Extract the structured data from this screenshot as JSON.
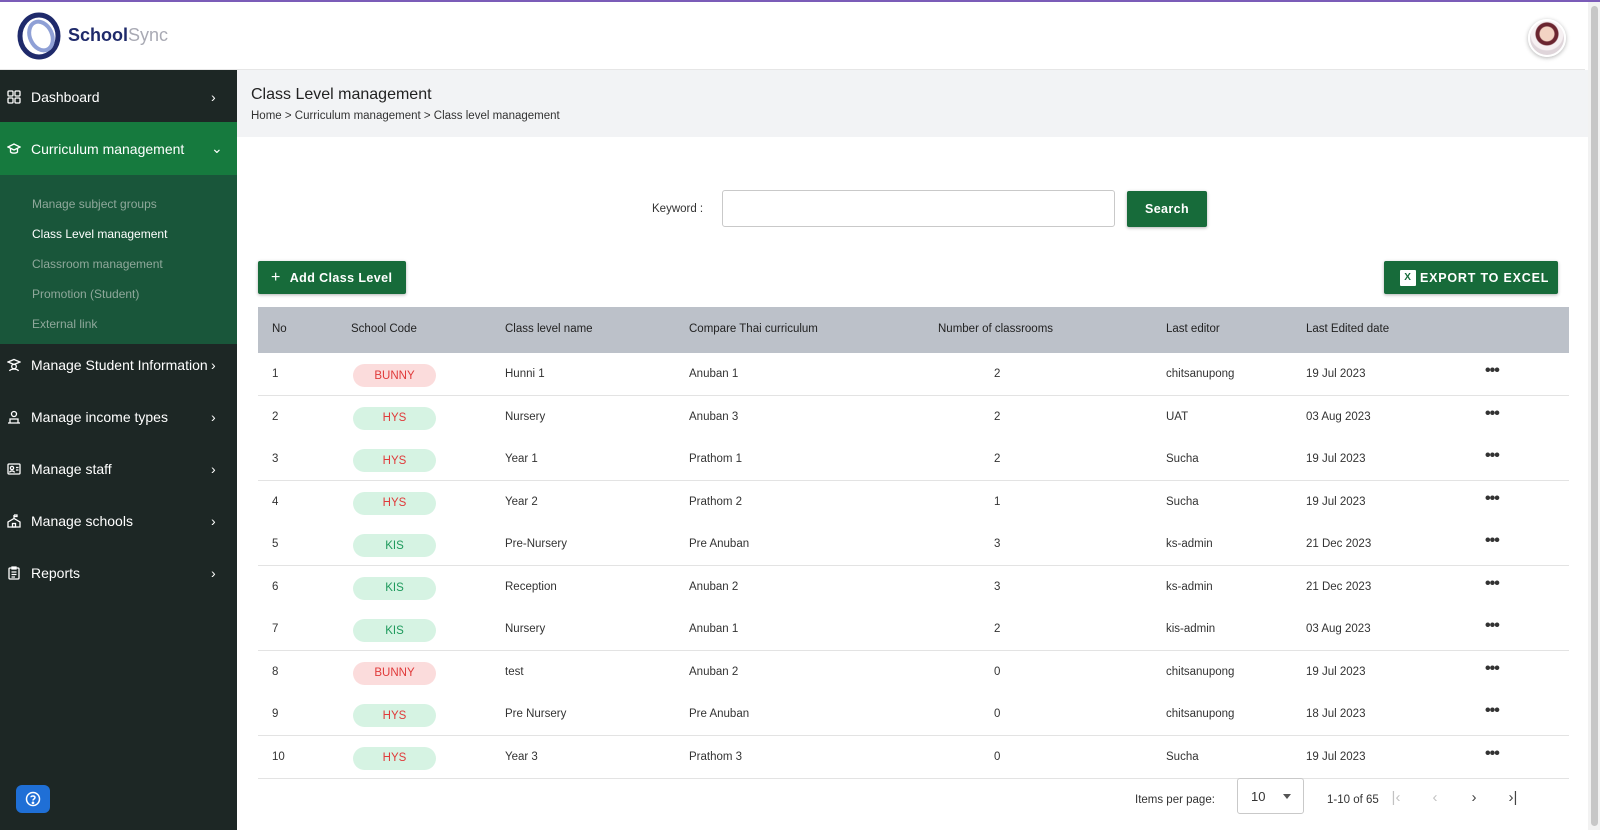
{
  "app": {
    "brand_primary": "School",
    "brand_secondary": "Sync"
  },
  "sidebar": {
    "items": [
      {
        "label": "Dashboard",
        "icon": "dashboard-grid-icon"
      },
      {
        "label": "Curriculum management",
        "icon": "graduation-cap-icon"
      },
      {
        "label": "Manage Student Information",
        "icon": "student-icon"
      },
      {
        "label": "Manage income types",
        "icon": "income-icon"
      },
      {
        "label": "Manage staff",
        "icon": "staff-icon"
      },
      {
        "label": "Manage schools",
        "icon": "school-icon"
      },
      {
        "label": "Reports",
        "icon": "report-icon"
      }
    ],
    "submenu": [
      "Manage subject groups",
      "Class Level management",
      "Classroom management",
      "Promotion (Student)",
      "External link"
    ]
  },
  "page": {
    "title": "Class Level management",
    "breadcrumb": "Home > Curriculum management > Class level management"
  },
  "search": {
    "label": "Keyword :",
    "value": "",
    "button": "Search"
  },
  "actions": {
    "add_label": "Add Class Level",
    "export_label": "EXPORT TO EXCEL"
  },
  "table": {
    "columns": [
      "No",
      "School Code",
      "Class level name",
      "Compare Thai curriculum",
      "Number of classrooms",
      "Last editor",
      "Last Edited date"
    ],
    "rows": [
      {
        "no": "1",
        "code": "BUNNY",
        "name": "Hunni 1",
        "thai": "Anuban 1",
        "rooms": "2",
        "editor": "chitsanupong",
        "date": "19 Jul 2023"
      },
      {
        "no": "2",
        "code": "HYS",
        "name": "Nursery",
        "thai": "Anuban 3",
        "rooms": "2",
        "editor": "UAT",
        "date": "03 Aug 2023"
      },
      {
        "no": "3",
        "code": "HYS",
        "name": "Year 1",
        "thai": "Prathom 1",
        "rooms": "2",
        "editor": "Sucha",
        "date": "19 Jul 2023"
      },
      {
        "no": "4",
        "code": "HYS",
        "name": "Year 2",
        "thai": "Prathom 2",
        "rooms": "1",
        "editor": "Sucha",
        "date": "19 Jul 2023"
      },
      {
        "no": "5",
        "code": "KIS",
        "name": "Pre-Nursery",
        "thai": "Pre Anuban",
        "rooms": "3",
        "editor": "ks-admin",
        "date": "21 Dec 2023"
      },
      {
        "no": "6",
        "code": "KIS",
        "name": "Reception",
        "thai": "Anuban 2",
        "rooms": "3",
        "editor": "ks-admin",
        "date": "21 Dec 2023"
      },
      {
        "no": "7",
        "code": "KIS",
        "name": "Nursery",
        "thai": "Anuban 1",
        "rooms": "2",
        "editor": "kis-admin",
        "date": "03 Aug 2023"
      },
      {
        "no": "8",
        "code": "BUNNY",
        "name": "test",
        "thai": "Anuban 2",
        "rooms": "0",
        "editor": "chitsanupong",
        "date": "19 Jul 2023"
      },
      {
        "no": "9",
        "code": "HYS",
        "name": "Pre Nursery",
        "thai": "Pre Anuban",
        "rooms": "0",
        "editor": "chitsanupong",
        "date": "18 Jul 2023"
      },
      {
        "no": "10",
        "code": "HYS",
        "name": "Year 3",
        "thai": "Prathom 3",
        "rooms": "0",
        "editor": "Sucha",
        "date": "19 Jul 2023"
      }
    ],
    "more_icon": "more-horizontal-icon"
  },
  "pagination": {
    "items_label": "Items per page:",
    "page_size": "10",
    "range": "1-10 of 65"
  },
  "colors": {
    "sidebar": "#1d2725",
    "active": "#167a3e",
    "submenu": "#19563a",
    "button": "#176b3a",
    "header_row": "#bcc1c9"
  }
}
